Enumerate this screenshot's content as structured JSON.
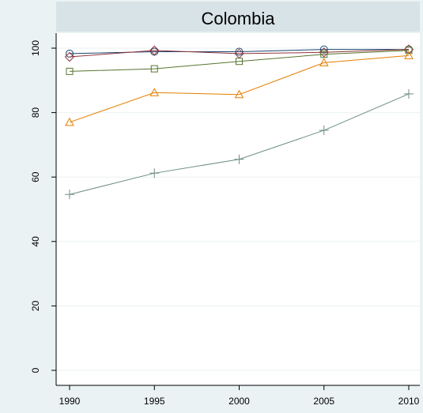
{
  "chart_data": {
    "type": "line",
    "title": "Colombia",
    "xlabel": "",
    "ylabel": "",
    "x": [
      1990,
      1995,
      2000,
      2005,
      2010
    ],
    "xlim": [
      1990,
      2010
    ],
    "ylim": [
      0,
      100
    ],
    "xticks": [
      "1990",
      "1995",
      "2000",
      "2005",
      "2010"
    ],
    "yticks": [
      "0",
      "20",
      "40",
      "60",
      "80",
      "100"
    ],
    "grid": true,
    "series": [
      {
        "marker": "circle",
        "color": "#1a476f",
        "values": [
          98.3,
          98.9,
          98.9,
          99.6,
          99.6
        ]
      },
      {
        "marker": "diamond",
        "color": "#90353b",
        "values": [
          97.3,
          99.3,
          98.3,
          98.7,
          99.6
        ]
      },
      {
        "marker": "square",
        "color": "#55752f",
        "values": [
          92.8,
          93.6,
          95.9,
          98.1,
          99.3
        ]
      },
      {
        "marker": "triangle",
        "color": "#e37e00",
        "values": [
          77.0,
          86.2,
          85.6,
          95.5,
          97.7
        ]
      },
      {
        "marker": "plus",
        "color": "#6e8e84",
        "values": [
          54.6,
          61.2,
          65.5,
          74.5,
          85.8
        ]
      }
    ]
  }
}
